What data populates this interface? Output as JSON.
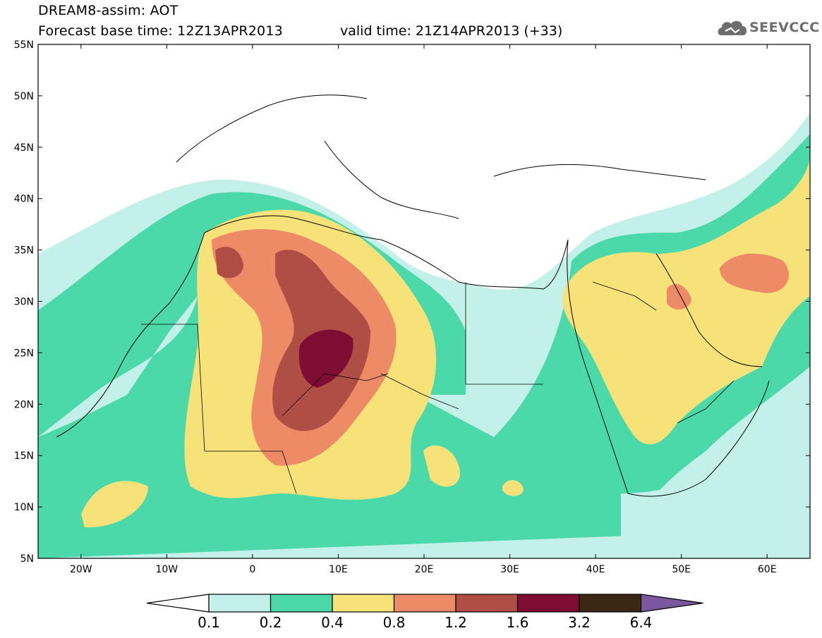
{
  "header": {
    "title": "DREAM8-assim: AOT",
    "base_time": "Forecast base time: 12Z13APR2013",
    "valid_time": "valid time: 21Z14APR2013 (+33)"
  },
  "logo": {
    "text": "SEEVCCC",
    "icon": "cloud-icon"
  },
  "map": {
    "lat_labels": [
      "55N",
      "50N",
      "45N",
      "40N",
      "35N",
      "30N",
      "25N",
      "20N",
      "15N",
      "10N",
      "5N"
    ],
    "lon_labels": [
      "20W",
      "10W",
      "0",
      "10E",
      "20E",
      "30E",
      "40E",
      "50E",
      "60E"
    ],
    "lat_range": [
      5,
      55
    ],
    "lon_range": [
      -25,
      65
    ]
  },
  "legend": {
    "thresholds": [
      "0.1",
      "0.2",
      "0.4",
      "0.8",
      "1.2",
      "1.6",
      "3.2",
      "6.4"
    ],
    "colors": [
      "#c4f0ea",
      "#4cd9a9",
      "#f7e27a",
      "#ec8b66",
      "#b04e46",
      "#7e0d33",
      "#3b2714",
      "#7b57a0"
    ],
    "left_arrow_color": "#ffffff"
  }
}
